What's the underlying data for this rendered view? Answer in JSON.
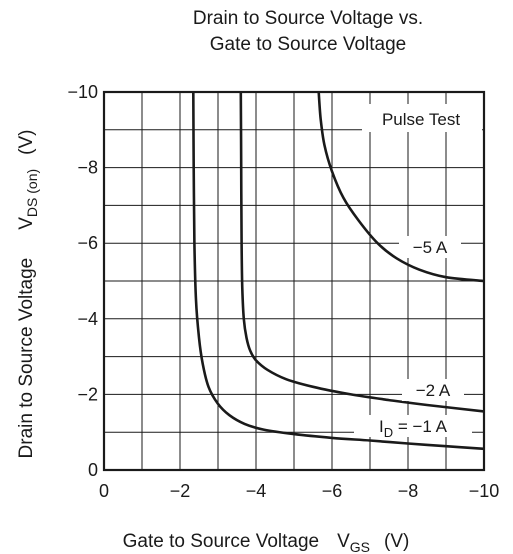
{
  "chart_data": {
    "type": "line",
    "title_lines": [
      "Drain to Source Voltage vs.",
      "Gate to Source Voltage"
    ],
    "xlabel": {
      "main": "Gate to Source Voltage",
      "symbol": "V",
      "sub": "GS",
      "unit": "(V)"
    },
    "ylabel": {
      "main": "Drain to Source Voltage",
      "symbol": "V",
      "sub": "DS (on)",
      "unit": "(V)"
    },
    "xlim": [
      0,
      -10
    ],
    "ylim": [
      0,
      -10
    ],
    "x_ticks": [
      {
        "value": 0,
        "label": "0"
      },
      {
        "value": -2,
        "label": "−2"
      },
      {
        "value": -4,
        "label": "−4"
      },
      {
        "value": -6,
        "label": "−6"
      },
      {
        "value": -8,
        "label": "−8"
      },
      {
        "value": -10,
        "label": "−10"
      }
    ],
    "y_ticks": [
      {
        "value": 0,
        "label": "0"
      },
      {
        "value": -2,
        "label": "−2"
      },
      {
        "value": -4,
        "label": "−4"
      },
      {
        "value": -6,
        "label": "−6"
      },
      {
        "value": -8,
        "label": "−8"
      },
      {
        "value": -10,
        "label": "−10"
      }
    ],
    "grid": true,
    "annotation": "Pulse Test",
    "series": [
      {
        "name": "−1 A",
        "label": {
          "prefix": "I",
          "sub": "D",
          "text": " = −1 A"
        },
        "x": [
          -2.35,
          -2.36,
          -2.38,
          -2.42,
          -2.5,
          -2.6,
          -2.75,
          -3.0,
          -3.3,
          -3.7,
          -4.2,
          -5.0,
          -6.0,
          -7.0,
          -8.0,
          -9.0,
          -10.0
        ],
        "y": [
          -10.0,
          -8.0,
          -6.0,
          -4.5,
          -3.5,
          -2.8,
          -2.2,
          -1.75,
          -1.45,
          -1.22,
          -1.07,
          -0.95,
          -0.85,
          -0.78,
          -0.7,
          -0.63,
          -0.56
        ]
      },
      {
        "name": "−2 A",
        "label": {
          "prefix": "",
          "sub": "",
          "text": "−2 A"
        },
        "x": [
          -3.6,
          -3.61,
          -3.62,
          -3.64,
          -3.68,
          -3.75,
          -3.85,
          -4.0,
          -4.3,
          -4.8,
          -5.5,
          -6.5,
          -7.5,
          -8.5,
          -10.0
        ],
        "y": [
          -10.0,
          -8.0,
          -6.0,
          -4.8,
          -4.0,
          -3.5,
          -3.15,
          -2.9,
          -2.65,
          -2.4,
          -2.2,
          -2.0,
          -1.85,
          -1.72,
          -1.55
        ]
      },
      {
        "name": "−5 A",
        "label": {
          "prefix": "",
          "sub": "",
          "text": "−5 A"
        },
        "x": [
          -5.65,
          -5.7,
          -5.8,
          -6.0,
          -6.3,
          -6.7,
          -7.2,
          -7.7,
          -8.3,
          -9.0,
          -10.0
        ],
        "y": [
          -10.0,
          -9.3,
          -8.6,
          -7.9,
          -7.2,
          -6.6,
          -6.0,
          -5.6,
          -5.3,
          -5.1,
          -5.0
        ]
      }
    ]
  }
}
